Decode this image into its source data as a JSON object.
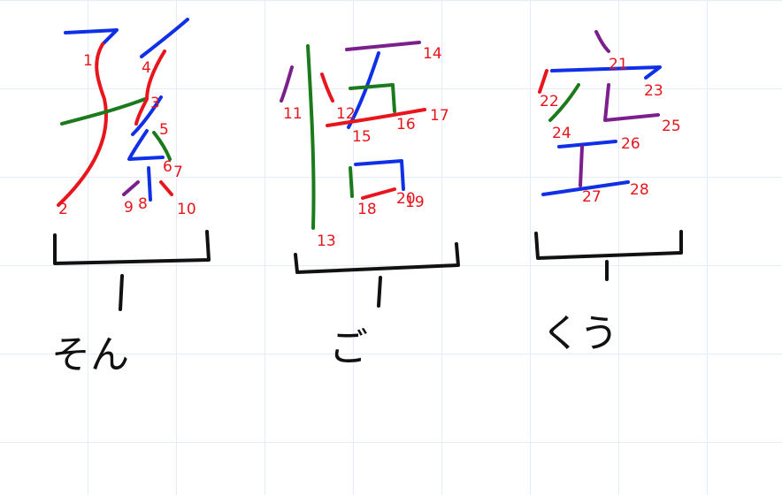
{
  "colors": {
    "red": "#e8151c",
    "blue": "#1030e8",
    "green": "#1b7a1b",
    "purple": "#7a1f8c",
    "black": "#111111",
    "label": "#e8151c",
    "grid": "#e6ecf7"
  },
  "characters": [
    {
      "name": "son",
      "reading": "そん",
      "stroke_numbers": [
        "1",
        "2",
        "3",
        "4",
        "5",
        "6",
        "7",
        "8",
        "9",
        "10"
      ]
    },
    {
      "name": "go",
      "reading": "ご",
      "stroke_numbers": [
        "11",
        "12",
        "13",
        "14",
        "15",
        "16",
        "17",
        "18",
        "19",
        "20"
      ]
    },
    {
      "name": "kuu",
      "reading": "くう",
      "stroke_numbers": [
        "21",
        "22",
        "23",
        "24",
        "25",
        "26",
        "27",
        "28"
      ]
    }
  ]
}
